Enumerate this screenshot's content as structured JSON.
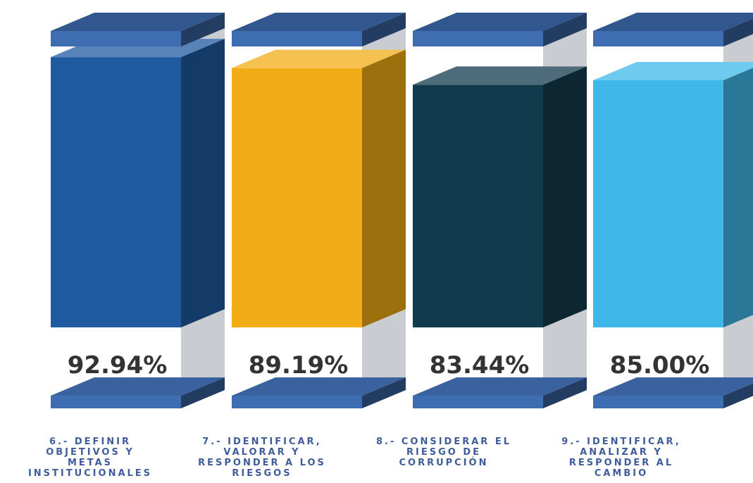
{
  "chart_data": {
    "type": "bar",
    "style": "3d-cylinder-gauge",
    "categories": [
      "6.- DEFINIR\nOBJETIVOS Y\nMETAS\nINSTITUCIONALES",
      "7.- IDENTIFICAR,\nVALORAR Y\nRESPONDER A LOS\nRIESGOS",
      "8.- CONSIDERAR EL\nRIESGO DE\nCORRUPCIÓN",
      "9.- IDENTIFICAR,\nANALIZAR Y\nRESPONDER AL\nCAMBIO"
    ],
    "values": [
      92.94,
      89.19,
      83.44,
      85.0
    ],
    "value_labels": [
      "92.94%",
      "89.19%",
      "83.44%",
      "85.00%"
    ],
    "colors": [
      "#1f5aa0",
      "#f2ac16",
      "#123a4d",
      "#3fb8e9"
    ],
    "ylim": [
      0,
      100
    ],
    "title": "",
    "xlabel": "",
    "ylabel": "",
    "grid": false,
    "legend": "none"
  }
}
